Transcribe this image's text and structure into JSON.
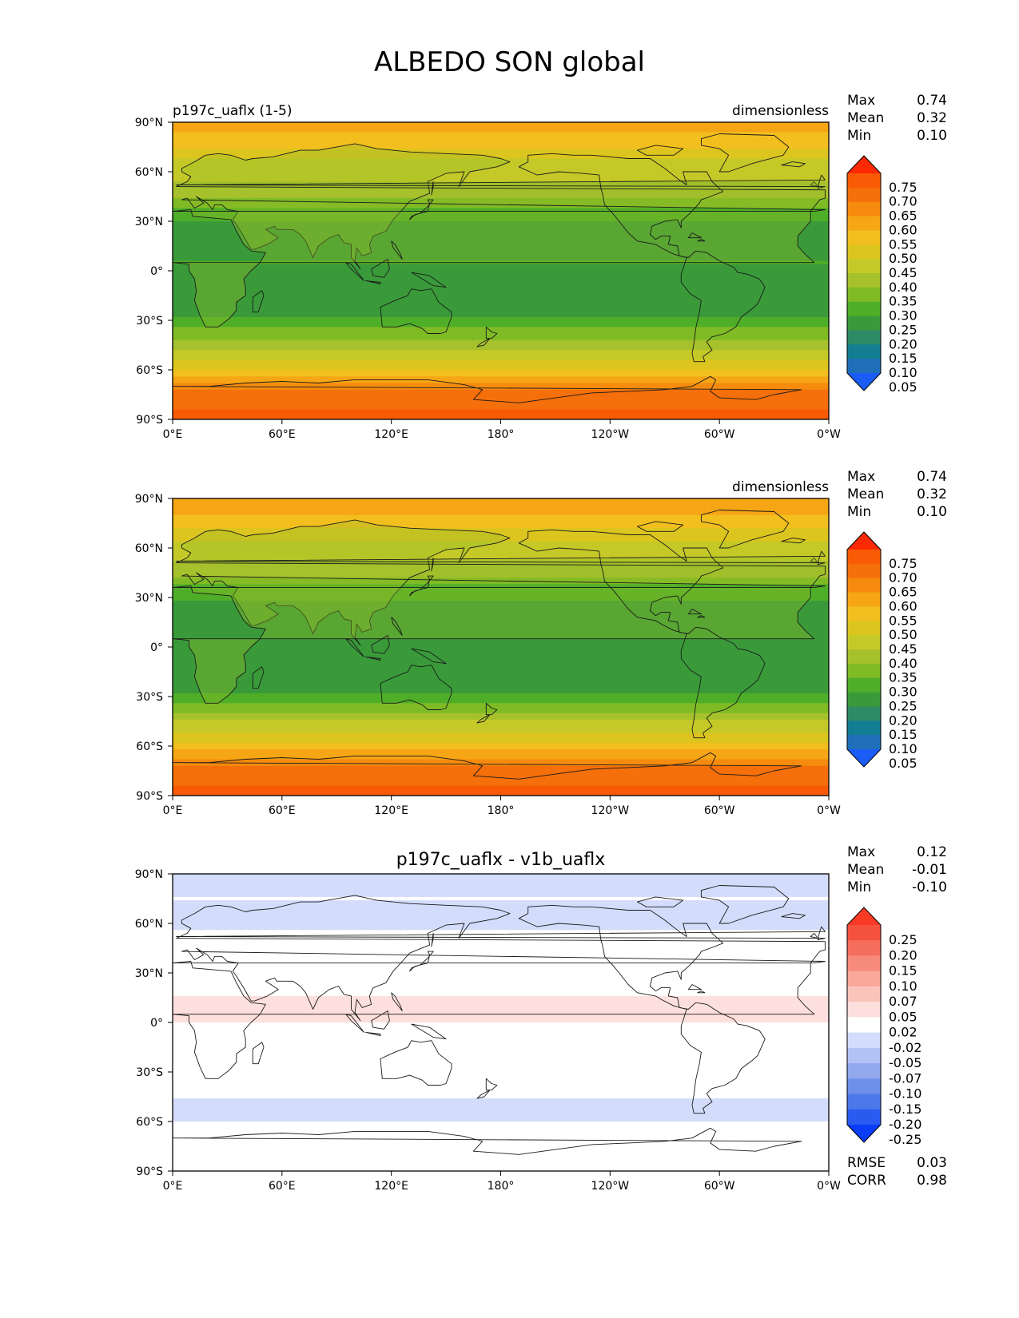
{
  "figure": {
    "title": "ALBEDO SON global",
    "panels": [
      {
        "left_title": "p197c_uaflx (1-5)",
        "center_title": "",
        "units": "dimensionless",
        "stats": [
          {
            "label": "Max",
            "value": "0.74"
          },
          {
            "label": "Mean",
            "value": "0.32"
          },
          {
            "label": "Min",
            "value": "0.10"
          }
        ],
        "colorbar": {
          "colors": [
            "#1a5cf5",
            "#1f6fb8",
            "#137d91",
            "#2f8a66",
            "#3a9a3a",
            "#4fae28",
            "#7fbb25",
            "#a6c12c",
            "#c5c928",
            "#dcc51f",
            "#f2bf1f",
            "#f6a514",
            "#f68b0e",
            "#f56f0a",
            "#f85a05",
            "#fb2a04"
          ],
          "labels": [
            "0.75",
            "0.70",
            "0.65",
            "0.60",
            "0.55",
            "0.50",
            "0.45",
            "0.40",
            "0.35",
            "0.30",
            "0.25",
            "0.20",
            "0.15",
            "0.10",
            "0.05"
          ]
        }
      },
      {
        "left_title": "",
        "center_title": "",
        "units": "dimensionless",
        "stats": [
          {
            "label": "Max",
            "value": "0.74"
          },
          {
            "label": "Mean",
            "value": "0.32"
          },
          {
            "label": "Min",
            "value": "0.10"
          }
        ],
        "colorbar": {
          "colors": [
            "#1a5cf5",
            "#1f6fb8",
            "#137d91",
            "#2f8a66",
            "#3a9a3a",
            "#4fae28",
            "#7fbb25",
            "#a6c12c",
            "#c5c928",
            "#dcc51f",
            "#f2bf1f",
            "#f6a514",
            "#f68b0e",
            "#f56f0a",
            "#f85a05",
            "#fb2a04"
          ],
          "labels": [
            "0.75",
            "0.70",
            "0.65",
            "0.60",
            "0.55",
            "0.50",
            "0.45",
            "0.40",
            "0.35",
            "0.30",
            "0.25",
            "0.20",
            "0.15",
            "0.10",
            "0.05"
          ]
        }
      },
      {
        "left_title": "",
        "center_title": "p197c_uaflx - v1b_uaflx",
        "units": "",
        "stats": [
          {
            "label": "Max",
            "value": "0.12"
          },
          {
            "label": "Mean",
            "value": "-0.01"
          },
          {
            "label": "Min",
            "value": "-0.10"
          }
        ],
        "extra_stats": [
          {
            "label": "RMSE",
            "value": "0.03"
          },
          {
            "label": "CORR",
            "value": "0.98"
          }
        ],
        "colorbar": {
          "colors": [
            "#0b3cf8",
            "#2a5bf0",
            "#4d78ea",
            "#6f90ea",
            "#92a9ee",
            "#b3c2f4",
            "#d3dcfa",
            "#ffffff",
            "#fde0dd",
            "#fbc4bb",
            "#f9a89a",
            "#f78b7b",
            "#f56e5d",
            "#f4523f",
            "#f93a25"
          ],
          "labels": [
            "0.25",
            "0.20",
            "0.15",
            "0.10",
            "0.07",
            "0.05",
            "0.02",
            "-0.02",
            "-0.05",
            "-0.07",
            "-0.10",
            "-0.15",
            "-0.20",
            "-0.25"
          ]
        }
      }
    ],
    "x_ticks": [
      "0°E",
      "60°E",
      "120°E",
      "180°",
      "120°W",
      "60°W",
      "0°W"
    ],
    "y_ticks": [
      "90°N",
      "60°N",
      "30°N",
      "0°",
      "30°S",
      "60°S",
      "90°S"
    ]
  },
  "chart_data": [
    {
      "type": "heatmap",
      "title": "p197c_uaflx (1-5)",
      "units": "dimensionless",
      "projection": "plate carree",
      "lon_range": [
        0,
        360
      ],
      "lat_range": [
        -90,
        90
      ],
      "contour_levels": [
        0.05,
        0.1,
        0.15,
        0.2,
        0.25,
        0.3,
        0.35,
        0.4,
        0.45,
        0.5,
        0.55,
        0.6,
        0.65,
        0.7,
        0.75
      ],
      "summary": {
        "max": 0.74,
        "mean": 0.32,
        "min": 0.1
      },
      "zonal_profile": [
        {
          "lat": 85,
          "value": 0.56
        },
        {
          "lat": 75,
          "value": 0.5
        },
        {
          "lat": 65,
          "value": 0.42
        },
        {
          "lat": 55,
          "value": 0.4
        },
        {
          "lat": 45,
          "value": 0.36
        },
        {
          "lat": 35,
          "value": 0.27
        },
        {
          "lat": 25,
          "value": 0.22
        },
        {
          "lat": 15,
          "value": 0.24
        },
        {
          "lat": 5,
          "value": 0.25
        },
        {
          "lat": -5,
          "value": 0.22
        },
        {
          "lat": -15,
          "value": 0.21
        },
        {
          "lat": -25,
          "value": 0.23
        },
        {
          "lat": -35,
          "value": 0.3
        },
        {
          "lat": -45,
          "value": 0.38
        },
        {
          "lat": -55,
          "value": 0.45
        },
        {
          "lat": -65,
          "value": 0.55
        },
        {
          "lat": -75,
          "value": 0.68
        },
        {
          "lat": -85,
          "value": 0.7
        }
      ]
    },
    {
      "type": "heatmap",
      "title": "",
      "units": "dimensionless",
      "projection": "plate carree",
      "lon_range": [
        0,
        360
      ],
      "lat_range": [
        -90,
        90
      ],
      "contour_levels": [
        0.05,
        0.1,
        0.15,
        0.2,
        0.25,
        0.3,
        0.35,
        0.4,
        0.45,
        0.5,
        0.55,
        0.6,
        0.65,
        0.7,
        0.75
      ],
      "summary": {
        "max": 0.74,
        "mean": 0.32,
        "min": 0.1
      },
      "zonal_profile": [
        {
          "lat": 85,
          "value": 0.58
        },
        {
          "lat": 75,
          "value": 0.52
        },
        {
          "lat": 65,
          "value": 0.45
        },
        {
          "lat": 55,
          "value": 0.42
        },
        {
          "lat": 45,
          "value": 0.37
        },
        {
          "lat": 35,
          "value": 0.28
        },
        {
          "lat": 25,
          "value": 0.23
        },
        {
          "lat": 15,
          "value": 0.23
        },
        {
          "lat": 5,
          "value": 0.22
        },
        {
          "lat": -5,
          "value": 0.21
        },
        {
          "lat": -15,
          "value": 0.21
        },
        {
          "lat": -25,
          "value": 0.23
        },
        {
          "lat": -35,
          "value": 0.31
        },
        {
          "lat": -45,
          "value": 0.4
        },
        {
          "lat": -55,
          "value": 0.48
        },
        {
          "lat": -65,
          "value": 0.57
        },
        {
          "lat": -75,
          "value": 0.68
        },
        {
          "lat": -85,
          "value": 0.7
        }
      ]
    },
    {
      "type": "heatmap",
      "title": "p197c_uaflx - v1b_uaflx",
      "units": "",
      "projection": "plate carree",
      "lon_range": [
        0,
        360
      ],
      "lat_range": [
        -90,
        90
      ],
      "contour_levels": [
        -0.25,
        -0.2,
        -0.15,
        -0.1,
        -0.07,
        -0.05,
        -0.02,
        0.02,
        0.05,
        0.07,
        0.1,
        0.15,
        0.2,
        0.25
      ],
      "summary": {
        "max": 0.12,
        "mean": -0.01,
        "min": -0.1,
        "rmse": 0.03,
        "corr": 0.98
      },
      "zonal_profile": [
        {
          "lat": 85,
          "value": -0.03
        },
        {
          "lat": 75,
          "value": -0.02
        },
        {
          "lat": 65,
          "value": -0.03
        },
        {
          "lat": 55,
          "value": -0.02
        },
        {
          "lat": 45,
          "value": -0.01
        },
        {
          "lat": 35,
          "value": 0.0
        },
        {
          "lat": 25,
          "value": 0.0
        },
        {
          "lat": 15,
          "value": 0.02
        },
        {
          "lat": 5,
          "value": 0.03
        },
        {
          "lat": -5,
          "value": 0.01
        },
        {
          "lat": -15,
          "value": 0.0
        },
        {
          "lat": -25,
          "value": 0.0
        },
        {
          "lat": -35,
          "value": -0.01
        },
        {
          "lat": -45,
          "value": -0.02
        },
        {
          "lat": -55,
          "value": -0.03
        },
        {
          "lat": -65,
          "value": -0.01
        },
        {
          "lat": -75,
          "value": 0.0
        },
        {
          "lat": -85,
          "value": 0.0
        }
      ]
    }
  ]
}
